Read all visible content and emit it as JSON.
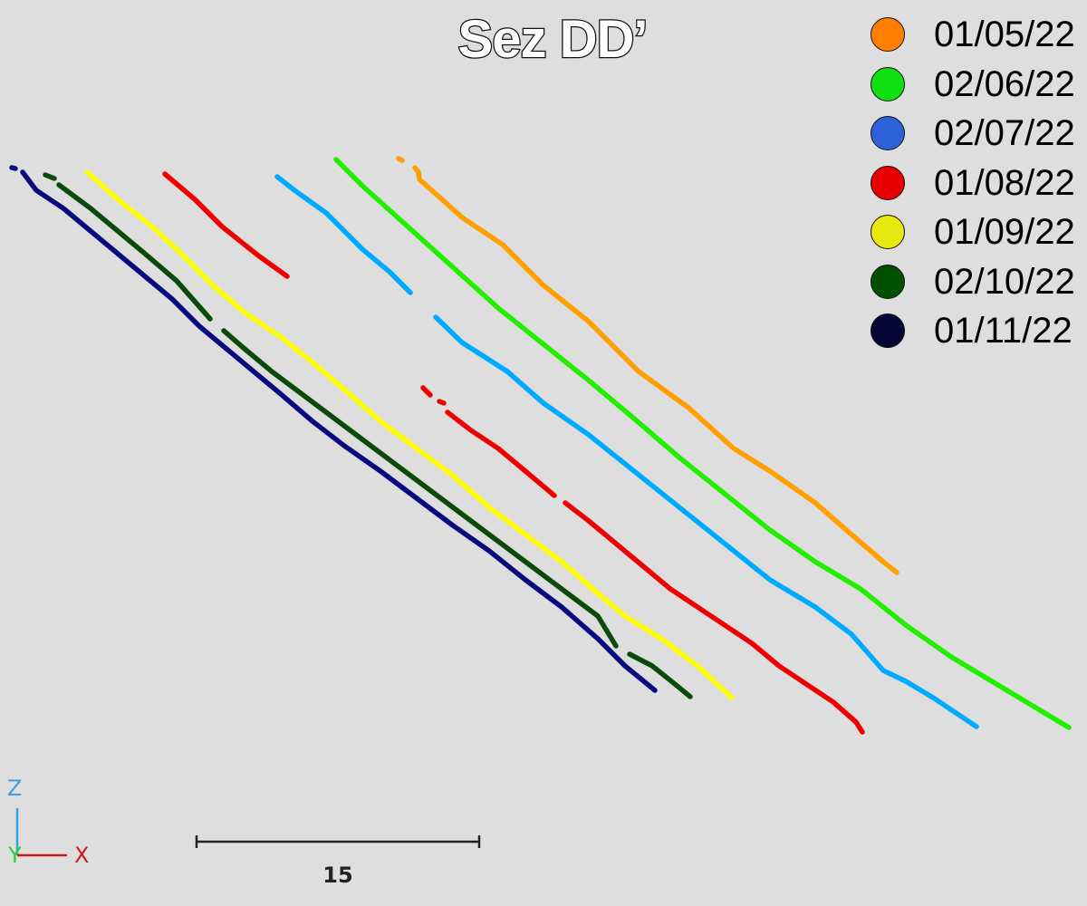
{
  "view": {
    "title": "Sez DD’"
  },
  "legend": {
    "items": [
      {
        "label": "01/05/22",
        "color": "#ff7f00"
      },
      {
        "label": "02/06/22",
        "color": "#10e010"
      },
      {
        "label": "02/07/22",
        "color": "#2e62d8"
      },
      {
        "label": "01/08/22",
        "color": "#e80000"
      },
      {
        "label": "01/09/22",
        "color": "#e8e810"
      },
      {
        "label": "02/10/22",
        "color": "#005000"
      },
      {
        "label": "01/11/22",
        "color": "#050535"
      }
    ]
  },
  "profiles": [
    {
      "date": "01/05/22",
      "color": "#ffa000"
    },
    {
      "date": "02/06/22",
      "color": "#22ee00"
    },
    {
      "date": "02/07/22",
      "color": "#00aaff"
    },
    {
      "date": "01/08/22",
      "color": "#ee0000"
    },
    {
      "date": "01/09/22",
      "color": "#ffff00"
    },
    {
      "date": "02/10/22",
      "color": "#0a4a0a"
    },
    {
      "date": "01/11/22",
      "color": "#0a0a80"
    }
  ],
  "axes": {
    "z_label": "Z",
    "y_label": "Y",
    "x_label": "X",
    "z_color": "#3aa0e0",
    "y_color": "#2ed02e",
    "x_color": "#d01818"
  },
  "scale_bar": {
    "label": "15"
  }
}
